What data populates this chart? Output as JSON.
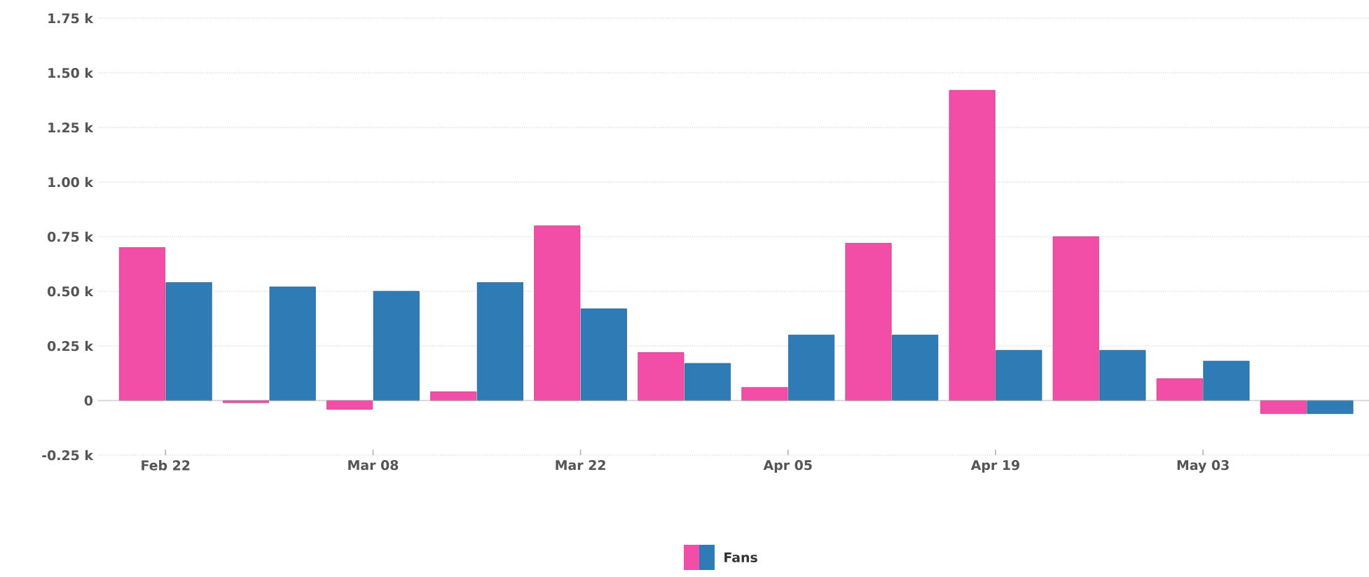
{
  "chart_data": {
    "type": "bar",
    "categories": [
      "Feb 22",
      null,
      "Mar 08",
      null,
      "Mar 22",
      null,
      "Apr 05",
      null,
      "Apr 19",
      null,
      "May 03",
      null
    ],
    "series": [
      {
        "name": "Fans",
        "color": "#f24ea8",
        "values": [
          0.7,
          -0.01,
          -0.04,
          0.04,
          0.8,
          0.22,
          0.06,
          0.72,
          1.42,
          0.75,
          0.1,
          -0.06
        ]
      },
      {
        "color": "#2e7bb6",
        "values": [
          0.54,
          0.52,
          0.5,
          0.54,
          0.42,
          0.17,
          0.3,
          0.3,
          0.23,
          0.23,
          0.18,
          -0.06
        ]
      }
    ],
    "ylim": [
      -0.25,
      1.75
    ],
    "yticks": [
      {
        "value": -0.25,
        "label": "-0.25 k"
      },
      0,
      {
        "value": 0.25,
        "label": "0.25 k"
      },
      {
        "value": 0.5,
        "label": "0.50 k"
      },
      {
        "value": 0.75,
        "label": "0.75 k"
      },
      {
        "value": 1.0,
        "label": "1.00 k"
      },
      {
        "value": 1.25,
        "label": "1.25 k"
      },
      {
        "value": 1.5,
        "label": "1.50 k"
      },
      {
        "value": 1.75,
        "label": "1.75 k"
      }
    ],
    "grid": "y",
    "legend": "bottom"
  }
}
